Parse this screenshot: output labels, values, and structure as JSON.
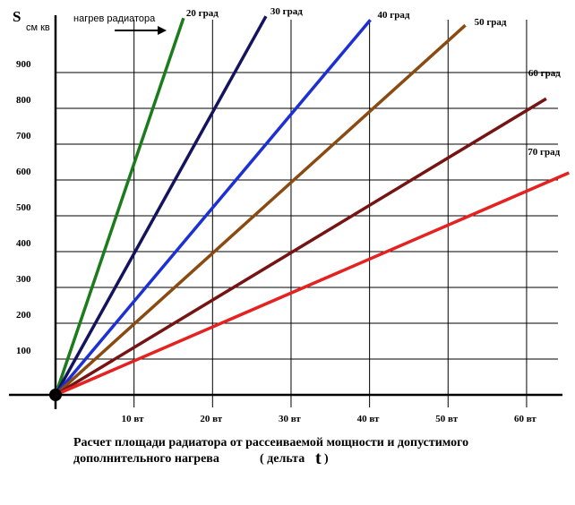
{
  "chart_data": {
    "type": "line",
    "y_label": "S",
    "y_unit": "см кв",
    "annotation": "нагрев радиатора",
    "caption": [
      "Расчет площади радиатора от рассеиваемой мощности и допустимого",
      "дополнительного нагрева",
      "( дельта",
      "t",
      ")"
    ],
    "xlim": [
      0,
      64
    ],
    "ylim": [
      0,
      1060
    ],
    "xticks": [
      {
        "value": 10,
        "label": "10 вт"
      },
      {
        "value": 20,
        "label": "20 вт"
      },
      {
        "value": 30,
        "label": "30 вт"
      },
      {
        "value": 40,
        "label": "40 вт"
      },
      {
        "value": 50,
        "label": "50 вт"
      },
      {
        "value": 60,
        "label": "60 вт"
      }
    ],
    "yticks": [
      100,
      200,
      300,
      400,
      500,
      600,
      700,
      800,
      900
    ],
    "grid": true,
    "series": [
      {
        "name": "20 град",
        "color": "#1c7c1c",
        "x": [
          0,
          16.3
        ],
        "values": [
          0,
          1052
        ]
      },
      {
        "name": "30 град",
        "color": "#14145e",
        "x": [
          0,
          26.8
        ],
        "values": [
          0,
          1057
        ]
      },
      {
        "name": "40 град",
        "color": "#1c30d4",
        "x": [
          0,
          40.1
        ],
        "values": [
          0,
          1047
        ]
      },
      {
        "name": "50 град",
        "color": "#8a4b12",
        "x": [
          0,
          52.2
        ],
        "values": [
          0,
          1032
        ]
      },
      {
        "name": "60 град",
        "color": "#761414",
        "x": [
          0,
          62.5
        ],
        "values": [
          0,
          827
        ]
      },
      {
        "name": "70 град",
        "color": "#e42222",
        "x": [
          0,
          65.4
        ],
        "values": [
          0,
          620
        ]
      }
    ]
  }
}
